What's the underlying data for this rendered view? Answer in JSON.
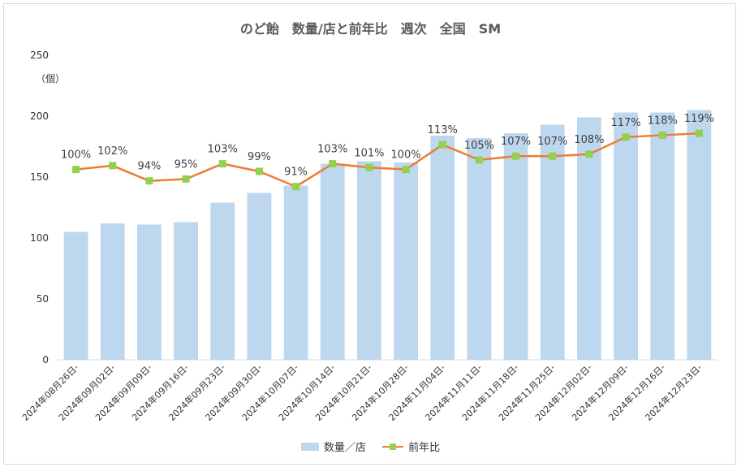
{
  "chart_data": {
    "type": "bar",
    "title": "のど飴　数量/店と前年比　週次　全国　SM",
    "ylabel": "（個）",
    "ylim": [
      0,
      250
    ],
    "yticks": [
      0,
      50,
      100,
      150,
      200,
      250
    ],
    "grid": false,
    "legend_position": "bottom",
    "categories": [
      "2024年08月26日-",
      "2024年09月02日-",
      "2024年09月09日-",
      "2024年09月16日-",
      "2024年09月23日-",
      "2024年09月30日-",
      "2024年10月07日-",
      "2024年10月14日-",
      "2024年10月21日-",
      "2024年10月28日-",
      "2024年11月04日-",
      "2024年11月11日-",
      "2024年11月18日-",
      "2024年11月25日-",
      "2024年12月02日-",
      "2024年12月09日-",
      "2024年12月16日-",
      "2024年12月23日-"
    ],
    "series": [
      {
        "name": "数量／店",
        "type": "bar",
        "color": "#bdd7ee",
        "values": [
          105,
          112,
          111,
          113,
          129,
          137,
          143,
          161,
          163,
          162,
          184,
          182,
          186,
          193,
          199,
          203,
          203,
          205
        ]
      },
      {
        "name": "前年比",
        "type": "line",
        "color": "#ed7d31",
        "marker_color": "#92d050",
        "values": [
          100,
          102,
          94,
          95,
          103,
          99,
          91,
          103,
          101,
          100,
          113,
          105,
          107,
          107,
          108,
          117,
          118,
          119
        ],
        "labels": [
          "100%",
          "102%",
          "94%",
          "95%",
          "103%",
          "99%",
          "91%",
          "103%",
          "101%",
          "100%",
          "113%",
          "105%",
          "107%",
          "107%",
          "108%",
          "117%",
          "118%",
          "119%"
        ]
      }
    ]
  },
  "legend": {
    "bar_label": "数量／店",
    "line_label": "前年比"
  }
}
